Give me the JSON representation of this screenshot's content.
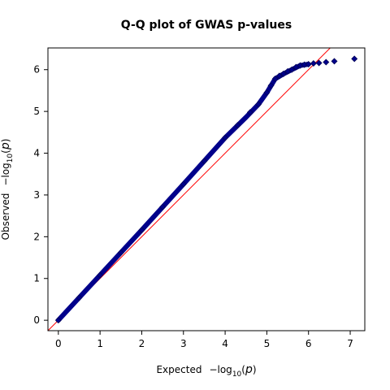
{
  "chart_data": {
    "type": "scatter",
    "title": "Q-Q plot of GWAS p-values",
    "xlabel": {
      "prefix": "Expected",
      "minus": "−log",
      "sub": "10",
      "open": "(",
      "var": "p",
      "close": ")"
    },
    "ylabel": {
      "prefix": "Observed",
      "minus": "−log",
      "sub": "10",
      "open": "(",
      "var": "p",
      "close": ")"
    },
    "xlim": [
      -0.25,
      7.35
    ],
    "ylim": [
      -0.25,
      6.52
    ],
    "xticks": [
      0,
      1,
      2,
      3,
      4,
      5,
      6,
      7
    ],
    "yticks": [
      0,
      1,
      2,
      3,
      4,
      5,
      6
    ],
    "grid": false,
    "legend": "none",
    "reference_line": {
      "slope": 1,
      "intercept": 0,
      "color": "#ff0000"
    },
    "point_color": "#00008b",
    "point_edge_color": "#000055",
    "curve": [
      [
        0,
        0
      ],
      [
        1,
        1.08
      ],
      [
        2,
        2.16
      ],
      [
        3,
        3.26
      ],
      [
        4,
        4.37
      ],
      [
        4.5,
        4.86
      ],
      [
        4.8,
        5.17
      ],
      [
        5.0,
        5.45
      ],
      [
        5.2,
        5.78
      ],
      [
        5.4,
        5.9
      ],
      [
        5.6,
        6.0
      ],
      [
        5.8,
        6.1
      ],
      [
        6.0,
        6.13
      ]
    ],
    "points": [
      [
        0,
        0
      ],
      [
        0.5,
        0.54
      ],
      [
        1.0,
        1.08
      ],
      [
        1.5,
        1.62
      ],
      [
        2.0,
        2.16
      ],
      [
        2.5,
        2.71
      ],
      [
        3.0,
        3.26
      ],
      [
        3.5,
        3.81
      ],
      [
        4.0,
        4.37
      ],
      [
        4.3,
        4.67
      ],
      [
        4.6,
        4.98
      ],
      [
        4.8,
        5.17
      ],
      [
        5.0,
        5.45
      ],
      [
        5.1,
        5.62
      ],
      [
        5.2,
        5.78
      ],
      [
        5.3,
        5.85
      ],
      [
        5.4,
        5.9
      ],
      [
        5.5,
        5.96
      ],
      [
        5.6,
        6.0
      ],
      [
        5.7,
        6.06
      ],
      [
        5.8,
        6.1
      ],
      [
        5.9,
        6.12
      ],
      [
        6.0,
        6.13
      ],
      [
        6.12,
        6.15
      ],
      [
        6.25,
        6.16
      ],
      [
        6.42,
        6.18
      ],
      [
        6.62,
        6.2
      ],
      [
        7.1,
        6.26
      ]
    ]
  }
}
